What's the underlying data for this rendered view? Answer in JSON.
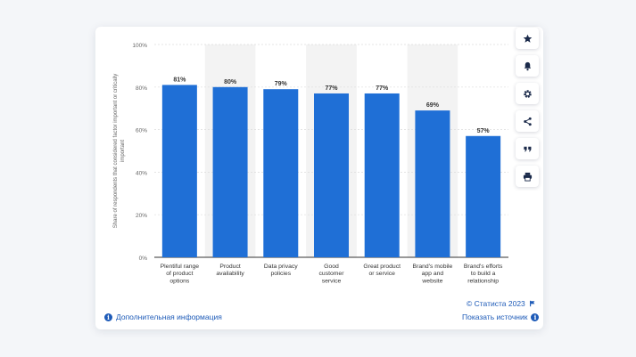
{
  "chart_data": {
    "type": "bar",
    "ylabel": "Share of respondents that considered factor important or critically important",
    "ylim": [
      0,
      100
    ],
    "yticks": [
      "0%",
      "20%",
      "40%",
      "60%",
      "80%",
      "100%"
    ],
    "ytick_values": [
      0,
      20,
      40,
      60,
      80,
      100
    ],
    "categories": [
      [
        "Plentiful range",
        "of product",
        "options"
      ],
      [
        "Product",
        "availability"
      ],
      [
        "Data privacy",
        "policies"
      ],
      [
        "Good",
        "customer",
        "service"
      ],
      [
        "Great product",
        "or service"
      ],
      [
        "Brand's mobile",
        "app and",
        "website"
      ],
      [
        "Brand's efforts",
        "to build a",
        "relationship"
      ]
    ],
    "values": [
      81,
      80,
      79,
      77,
      77,
      69,
      57
    ],
    "value_labels": [
      "81%",
      "80%",
      "79%",
      "77%",
      "77%",
      "69%",
      "57%"
    ],
    "bar_color": "#1f6fd6",
    "grid": true
  },
  "footer": {
    "more_info": "Дополнительная информация",
    "copyright": "© Статиста 2023",
    "show_source": "Показать источник"
  },
  "sidebar": {
    "icons": [
      "star-icon",
      "bell-icon",
      "gear-icon",
      "share-icon",
      "quote-icon",
      "print-icon"
    ]
  },
  "colors": {
    "link": "#1e5bb8",
    "band": "#f3f3f3"
  }
}
